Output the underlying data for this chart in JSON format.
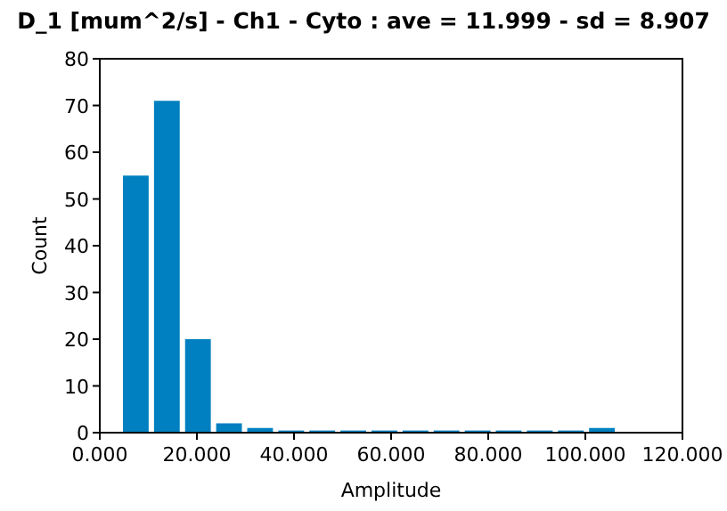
{
  "chart_data": {
    "type": "histogram",
    "title": "D_1 [mum^2/s] - Ch1 - Cyto : ave = 11.999 - sd = 8.907",
    "xlabel": "Amplitude",
    "ylabel": "Count",
    "bins": [
      4.4,
      10.8,
      17.2,
      23.6,
      30.0,
      36.4,
      42.8,
      49.2,
      55.6,
      62.0,
      68.4,
      74.8,
      81.2,
      87.6,
      94.0,
      100.4,
      106.8
    ],
    "values": [
      55,
      71,
      20,
      2,
      1,
      0,
      0,
      0,
      0,
      0,
      0,
      0,
      0,
      0,
      0,
      1
    ],
    "color": "#0080c0",
    "xlim": [
      0,
      120
    ],
    "xticks": [
      {
        "value": 0,
        "label": "0.000"
      },
      {
        "value": 20,
        "label": "20.000"
      },
      {
        "value": 40,
        "label": "40.000"
      },
      {
        "value": 60,
        "label": "60.000"
      },
      {
        "value": 80,
        "label": "80.000"
      },
      {
        "value": 100,
        "label": "100.000"
      },
      {
        "value": 120,
        "label": "120.000"
      }
    ],
    "ylim": [
      0,
      80
    ],
    "yticks": [
      0,
      10,
      20,
      30,
      40,
      50,
      60,
      70,
      80
    ],
    "grid": false
  }
}
